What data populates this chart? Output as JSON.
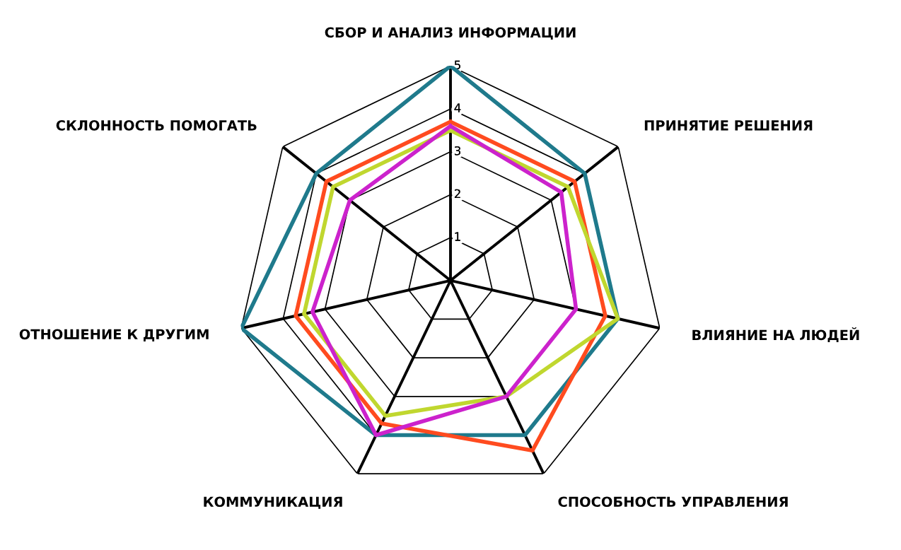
{
  "chart_data": {
    "type": "radar",
    "categories": [
      "СБОР И АНАЛИЗ ИНФОРМАЦИИ",
      "ПРИНЯТИЕ РЕШЕНИЯ",
      "ВЛИЯНИЕ НА ЛЮДЕЙ",
      "СПОСОБНОСТЬ УПРАВЛЕНИЯ",
      "КОММУНИКАЦИЯ",
      "ОТНОШЕНИЕ К ДРУГИМ",
      "СКЛОННОСТЬ ПОМОГАТЬ"
    ],
    "series": [
      {
        "color": "#1f7a8c",
        "values": [
          5,
          4,
          4,
          4,
          4,
          5,
          4
        ]
      },
      {
        "color": "#ff4b1f",
        "values": [
          3.7,
          3.7,
          3.7,
          4.4,
          3.7,
          3.7,
          3.7
        ]
      },
      {
        "color": "#c0d72f",
        "values": [
          3.5,
          3.5,
          4,
          3,
          3.5,
          3.5,
          3.5
        ]
      },
      {
        "color": "#cc22cc",
        "values": [
          3.6,
          3.3,
          3,
          3,
          4,
          3.3,
          3
        ]
      }
    ],
    "ylim": [
      0,
      5
    ],
    "yticks": [
      1,
      2,
      3,
      4,
      5
    ],
    "grid": true,
    "legend": false,
    "marker": "none",
    "line_style": "solid"
  }
}
